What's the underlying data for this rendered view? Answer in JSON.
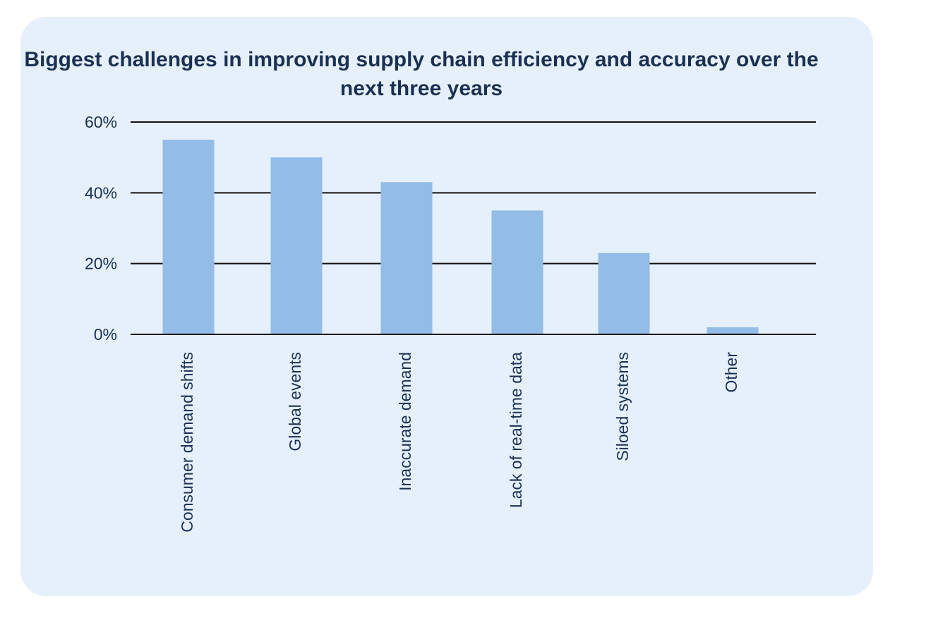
{
  "colors": {
    "card_background": "#e6f0fb",
    "bar": "#93bce7",
    "text": "#1b3152",
    "gridline": "#111111"
  },
  "chart_data": {
    "type": "bar",
    "title": "Biggest challenges in improving supply chain efficiency and accuracy over the next three years",
    "xlabel": "",
    "ylabel": "",
    "categories": [
      "Consumer demand shifts",
      "Global events",
      "Inaccurate demand",
      "Lack of real-time data",
      "Siloed systems",
      "Other"
    ],
    "values": [
      55,
      50,
      43,
      35,
      23,
      2
    ],
    "ylim": [
      0,
      60
    ],
    "yticks": [
      0,
      20,
      40,
      60
    ],
    "ytick_labels": [
      "0%",
      "20%",
      "40%",
      "60%"
    ],
    "grid": true,
    "legend": "none"
  }
}
